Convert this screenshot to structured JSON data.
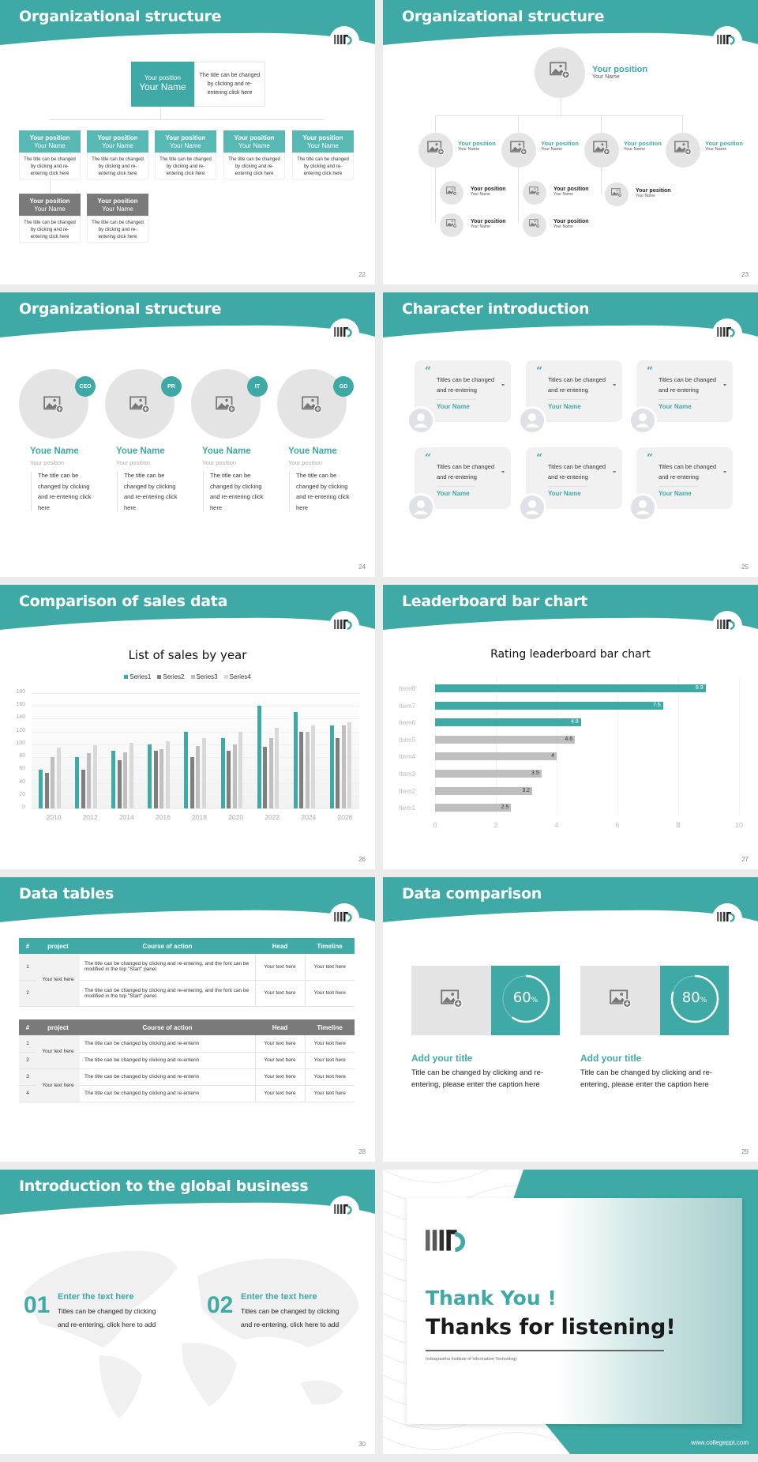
{
  "brand": {
    "teal": "#3ea9a5",
    "dark_gray": "#7f7f7f",
    "light_gray": "#bfbfbf",
    "logo_icon": "iiitd-logo-icon"
  },
  "slides": {
    "s22": {
      "title": "Organizational structure",
      "page": "22",
      "top": {
        "position": "Your position",
        "name": "Your Name",
        "desc": "The title can be changed by clicking and re-entering click here"
      },
      "boxes": [
        {
          "position": "Your position",
          "name": "Your Name",
          "desc": "The title can be changed by clicking and re-entering click here"
        },
        {
          "position": "Your position",
          "name": "Your Name",
          "desc": "The title can be changed by clicking and re-entering click here"
        },
        {
          "position": "Your position",
          "name": "Your Name",
          "desc": "The title can be changed by clicking and re-entering click here"
        },
        {
          "position": "Your position",
          "name": "Your Name",
          "desc": "The title can be changed by clicking and re-entering click here"
        },
        {
          "position": "Your position",
          "name": "Your Name",
          "desc": "The title can be changed by clicking and re-entering click here"
        },
        {
          "position": "Your position",
          "name": "Your Name",
          "desc": "The title can be changed by clicking and re-entering click here"
        },
        {
          "position": "Your position",
          "name": "Your Name",
          "desc": "The title can be changed by clicking and re-entering click here"
        }
      ]
    },
    "s23": {
      "title": "Organizational structure",
      "page": "23",
      "top": {
        "position": "Your position",
        "name": "Your Name"
      },
      "level2": [
        {
          "position": "Your position",
          "name": "Your Name"
        },
        {
          "position": "Your position",
          "name": "Your Name"
        },
        {
          "position": "Your position",
          "name": "Your Name"
        },
        {
          "position": "Your position",
          "name": "Your Name"
        }
      ],
      "level3": [
        {
          "position": "Your position",
          "name": "Your Name"
        },
        {
          "position": "Your position",
          "name": "Your Name"
        },
        {
          "position": "Your position",
          "name": "Your Name"
        },
        {
          "position": "Your position",
          "name": "Your Name"
        },
        {
          "position": "Your position",
          "name": "Your Name"
        }
      ]
    },
    "s24": {
      "title": "Organizational structure",
      "page": "24",
      "people": [
        {
          "badge": "CEO",
          "name": "Youe Name",
          "position": "Your position",
          "desc": "The title can be changed by clicking and re-entering click here"
        },
        {
          "badge": "PR",
          "name": "Youe Name",
          "position": "Your position",
          "desc": "The title can be changed by clicking and re-entering click here"
        },
        {
          "badge": "IT",
          "name": "Youe Name",
          "position": "Your position",
          "desc": "The title can be changed by clicking and re-entering click here"
        },
        {
          "badge": "GD",
          "name": "Youe Name",
          "position": "Your position",
          "desc": "The title can be changed by clicking and re-entering click here"
        }
      ]
    },
    "s25": {
      "title": "Character introduction",
      "page": "25",
      "cards": [
        {
          "quote": "Titles can be changed and re-entering",
          "name": "Your Name"
        },
        {
          "quote": "Titles can be changed and re-entering",
          "name": "Your Name"
        },
        {
          "quote": "Titles can be changed and re-entering",
          "name": "Your Name"
        },
        {
          "quote": "Titles can be changed and re-entering",
          "name": "Your Name"
        },
        {
          "quote": "Titles can be changed and re-entering",
          "name": "Your Name"
        },
        {
          "quote": "Titles can be changed and re-entering",
          "name": "Your Name"
        }
      ],
      "open_quote": "“",
      "close_quote": "”"
    },
    "s26": {
      "title": "Comparison of sales data",
      "page": "26"
    },
    "s27": {
      "title": "Leaderboard bar chart",
      "page": "27"
    },
    "s28": {
      "title": "Data tables",
      "page": "28",
      "headers": [
        "#",
        "project",
        "Course of action",
        "Head",
        "Timeline"
      ],
      "table1": {
        "project": "Your text here",
        "rows": [
          {
            "num": "1",
            "action": " The title can be changed by clicking and re-entering, and the font can be modified in the top \"Start\" panel",
            "head": "Your text here",
            "timeline": "Your text here"
          },
          {
            "num": "2",
            "action": "The title can be changed by clicking and re-entering, and the font can be modified in the top \"Start\" panel",
            "head": "Your text here",
            "timeline": "Your text here"
          }
        ]
      },
      "table2": {
        "projects": [
          "Your text here",
          "Your text here"
        ],
        "rows": [
          {
            "num": "1",
            "action": "The title can be changed by clicking and re-enterin",
            "head": "Your text here",
            "timeline": "Your text here"
          },
          {
            "num": "2",
            "action": "The title can be changed by clicking and re-enterin",
            "head": "Your text here",
            "timeline": "Your text here"
          },
          {
            "num": "3",
            "action": "The title can be changed by clicking and re-enterin",
            "head": "Your text here",
            "timeline": "Your text here"
          },
          {
            "num": "4",
            "action": "The title can be changed by clicking and re-enterin",
            "head": "Your text here",
            "timeline": "Your text here"
          }
        ]
      }
    },
    "s29": {
      "title": "Data comparison",
      "page": "29",
      "items": [
        {
          "percent": "60",
          "unit": "%",
          "value": 60,
          "heading": "Add your title",
          "desc": "Title can be changed by clicking and re-entering, please enter the caption here"
        },
        {
          "percent": "80",
          "unit": "%",
          "value": 80,
          "heading": "Add your title",
          "desc": "Title can be changed by clicking and re-entering, please enter the caption here"
        }
      ]
    },
    "s30": {
      "title": "Introduction to the global business",
      "page": "30",
      "items": [
        {
          "num": "01",
          "heading": "Enter the text here",
          "desc": "Titles can be changed by clicking and re-entering, click here to add"
        },
        {
          "num": "02",
          "heading": "Enter the text here",
          "desc": "Titles can be changed by clicking and re-entering, click here to add"
        }
      ]
    },
    "s31": {
      "thank": "Thank You !",
      "listening": "Thanks for listening!",
      "institute": "Indraprastha Institute of Information Technology",
      "website": "www.collegeppt.com"
    }
  },
  "chart_data": [
    {
      "type": "bar",
      "title": "List of sales by year",
      "categories": [
        "2010",
        "2012",
        "2014",
        "2016",
        "2018",
        "2020",
        "2022",
        "2024",
        "2026"
      ],
      "series": [
        {
          "name": "Series1",
          "color": "#3ea9a5",
          "values": [
            60,
            80,
            90,
            100,
            120,
            110,
            160,
            150,
            130
          ]
        },
        {
          "name": "Series2",
          "color": "#7f7f7f",
          "values": [
            55,
            60,
            75,
            90,
            80,
            90,
            96,
            120,
            110
          ]
        },
        {
          "name": "Series3",
          "color": "#bfbfbf",
          "values": [
            80,
            86,
            88,
            92,
            98,
            100,
            110,
            120,
            130
          ]
        },
        {
          "name": "Series4",
          "color": "#d9d9d9",
          "values": [
            95,
            99,
            102,
            105,
            110,
            120,
            126,
            130,
            135
          ]
        }
      ],
      "xlabel": "",
      "ylabel": "",
      "ylim": [
        0,
        180
      ],
      "yticks": [
        "0",
        "20",
        "40",
        "60",
        "80",
        "100",
        "120",
        "140",
        "160",
        "180"
      ],
      "legend_position": "top",
      "grid": true
    },
    {
      "type": "bar",
      "orientation": "horizontal",
      "title": "Rating leaderboard bar chart",
      "categories": [
        "Item8",
        "Item7",
        "Item6",
        "Item5",
        "Item4",
        "Item3",
        "Item2",
        "Item1"
      ],
      "values": [
        8.9,
        7.5,
        4.8,
        4.6,
        4,
        3.5,
        3.2,
        2.5
      ],
      "labels": [
        "8.9",
        "7.5",
        "4.8",
        "4.6",
        "4",
        "3.5",
        "3.2",
        "2.5"
      ],
      "highlight_top": 3,
      "xlim": [
        0,
        10
      ],
      "xticks": [
        "0",
        "2",
        "4",
        "6",
        "8",
        "10"
      ],
      "grid": true
    }
  ]
}
